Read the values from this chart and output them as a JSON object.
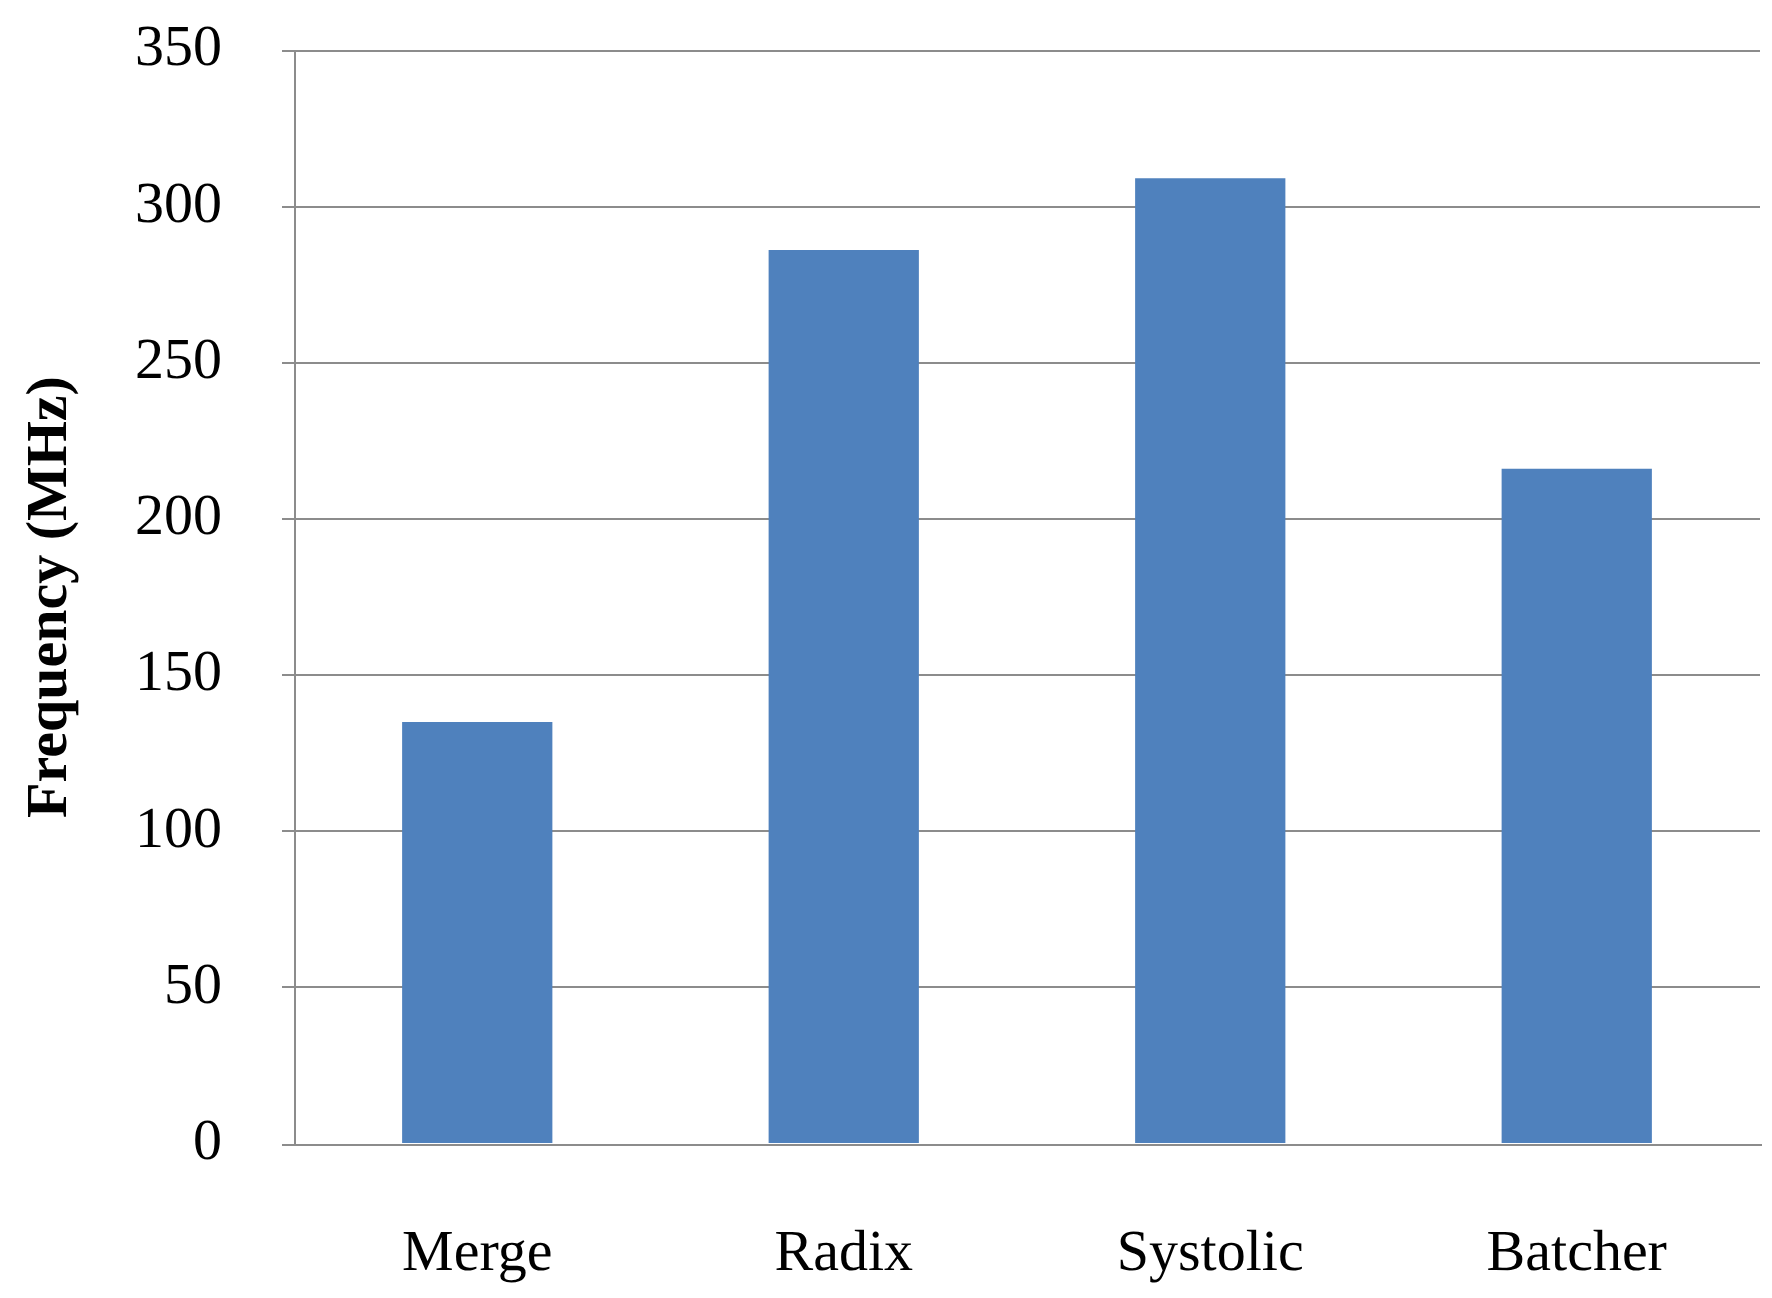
{
  "chart_data": {
    "type": "bar",
    "ylabel": "Frequency (MHz)",
    "categories": [
      "Merge",
      "Radix",
      "Systolic",
      "Batcher"
    ],
    "values": [
      135,
      286,
      309,
      216
    ],
    "color": "#4f81bd",
    "ylim": [
      0,
      350
    ],
    "yticks": [
      0,
      50,
      100,
      150,
      200,
      250,
      300,
      350
    ],
    "grid": "y",
    "legend": false
  }
}
